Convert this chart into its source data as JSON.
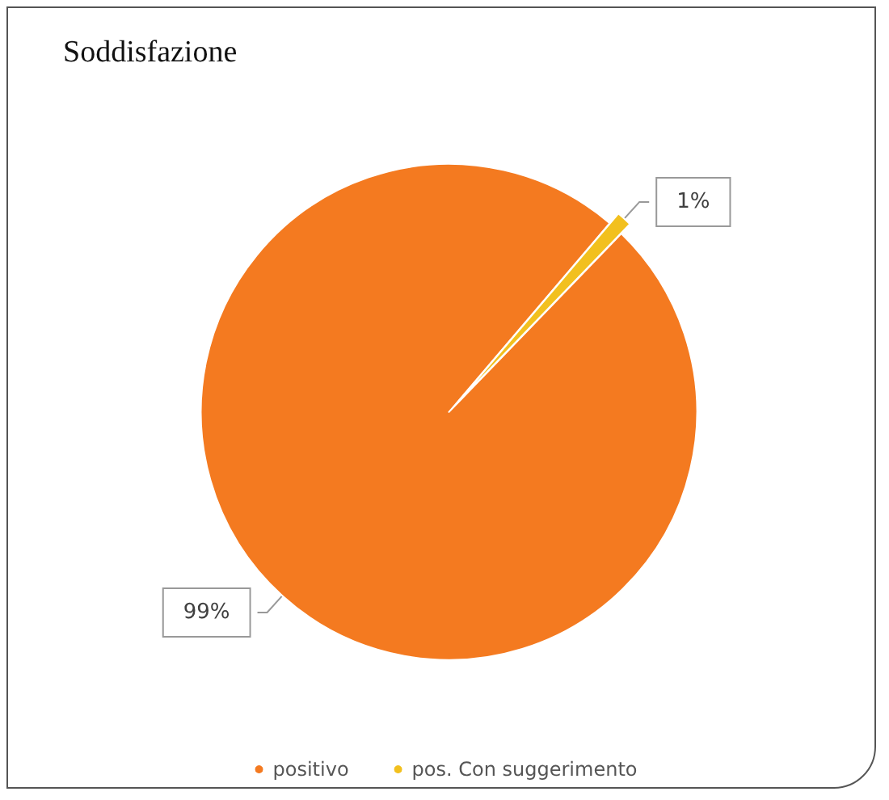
{
  "chart_data": {
    "type": "pie",
    "title": "Soddisfazione",
    "categories": [
      "positivo",
      "pos. Con suggerimento"
    ],
    "values": [
      99,
      1
    ],
    "colors": [
      "#f47a20",
      "#f2c01e"
    ],
    "value_labels": [
      "99%",
      "1%"
    ],
    "legend": "bottom"
  }
}
